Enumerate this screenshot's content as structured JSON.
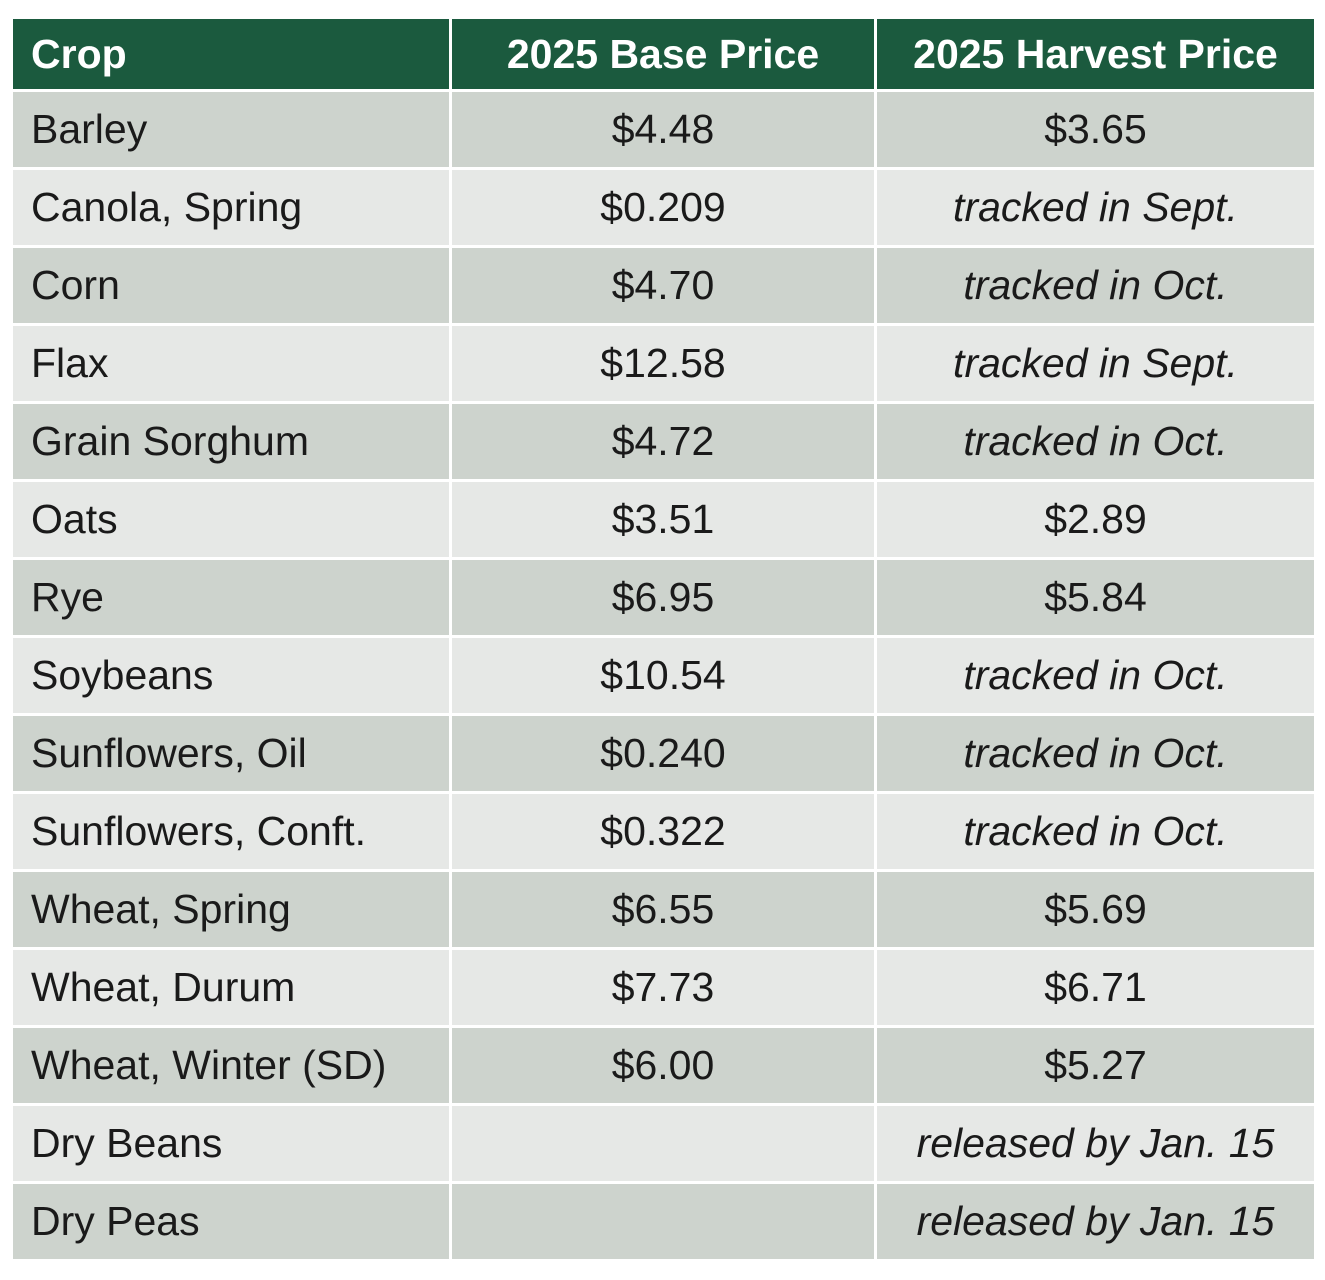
{
  "colors": {
    "header_bg": "#1b5a3e",
    "header_text": "#ffffff",
    "row_dark": "#cdd3cd",
    "row_light": "#e6e8e6"
  },
  "table": {
    "headers": [
      "Crop",
      "2025 Base Price",
      "2025 Harvest Price"
    ],
    "rows": [
      {
        "crop": "Barley",
        "base": "$4.48",
        "harvest": "$3.65",
        "harvest_note": false
      },
      {
        "crop": "Canola, Spring",
        "base": "$0.209",
        "harvest": "tracked in Sept.",
        "harvest_note": true
      },
      {
        "crop": "Corn",
        "base": "$4.70",
        "harvest": "tracked in Oct.",
        "harvest_note": true
      },
      {
        "crop": "Flax",
        "base": "$12.58",
        "harvest": "tracked in Sept.",
        "harvest_note": true
      },
      {
        "crop": "Grain Sorghum",
        "base": "$4.72",
        "harvest": "tracked in Oct.",
        "harvest_note": true
      },
      {
        "crop": "Oats",
        "base": "$3.51",
        "harvest": "$2.89",
        "harvest_note": false
      },
      {
        "crop": "Rye",
        "base": "$6.95",
        "harvest": "$5.84",
        "harvest_note": false
      },
      {
        "crop": "Soybeans",
        "base": "$10.54",
        "harvest": "tracked in Oct.",
        "harvest_note": true
      },
      {
        "crop": "Sunflowers, Oil",
        "base": "$0.240",
        "harvest": "tracked in Oct.",
        "harvest_note": true
      },
      {
        "crop": "Sunflowers, Conft.",
        "base": "$0.322",
        "harvest": "tracked in Oct.",
        "harvest_note": true
      },
      {
        "crop": "Wheat, Spring",
        "base": "$6.55",
        "harvest": "$5.69",
        "harvest_note": false
      },
      {
        "crop": "Wheat, Durum",
        "base": "$7.73",
        "harvest": "$6.71",
        "harvest_note": false
      },
      {
        "crop": "Wheat, Winter (SD)",
        "base": "$6.00",
        "harvest": "$5.27",
        "harvest_note": false
      },
      {
        "crop": "Dry Beans",
        "base": "",
        "harvest": "released by Jan. 15",
        "harvest_note": true
      },
      {
        "crop": "Dry Peas",
        "base": "",
        "harvest": "released by Jan. 15",
        "harvest_note": true
      }
    ]
  }
}
